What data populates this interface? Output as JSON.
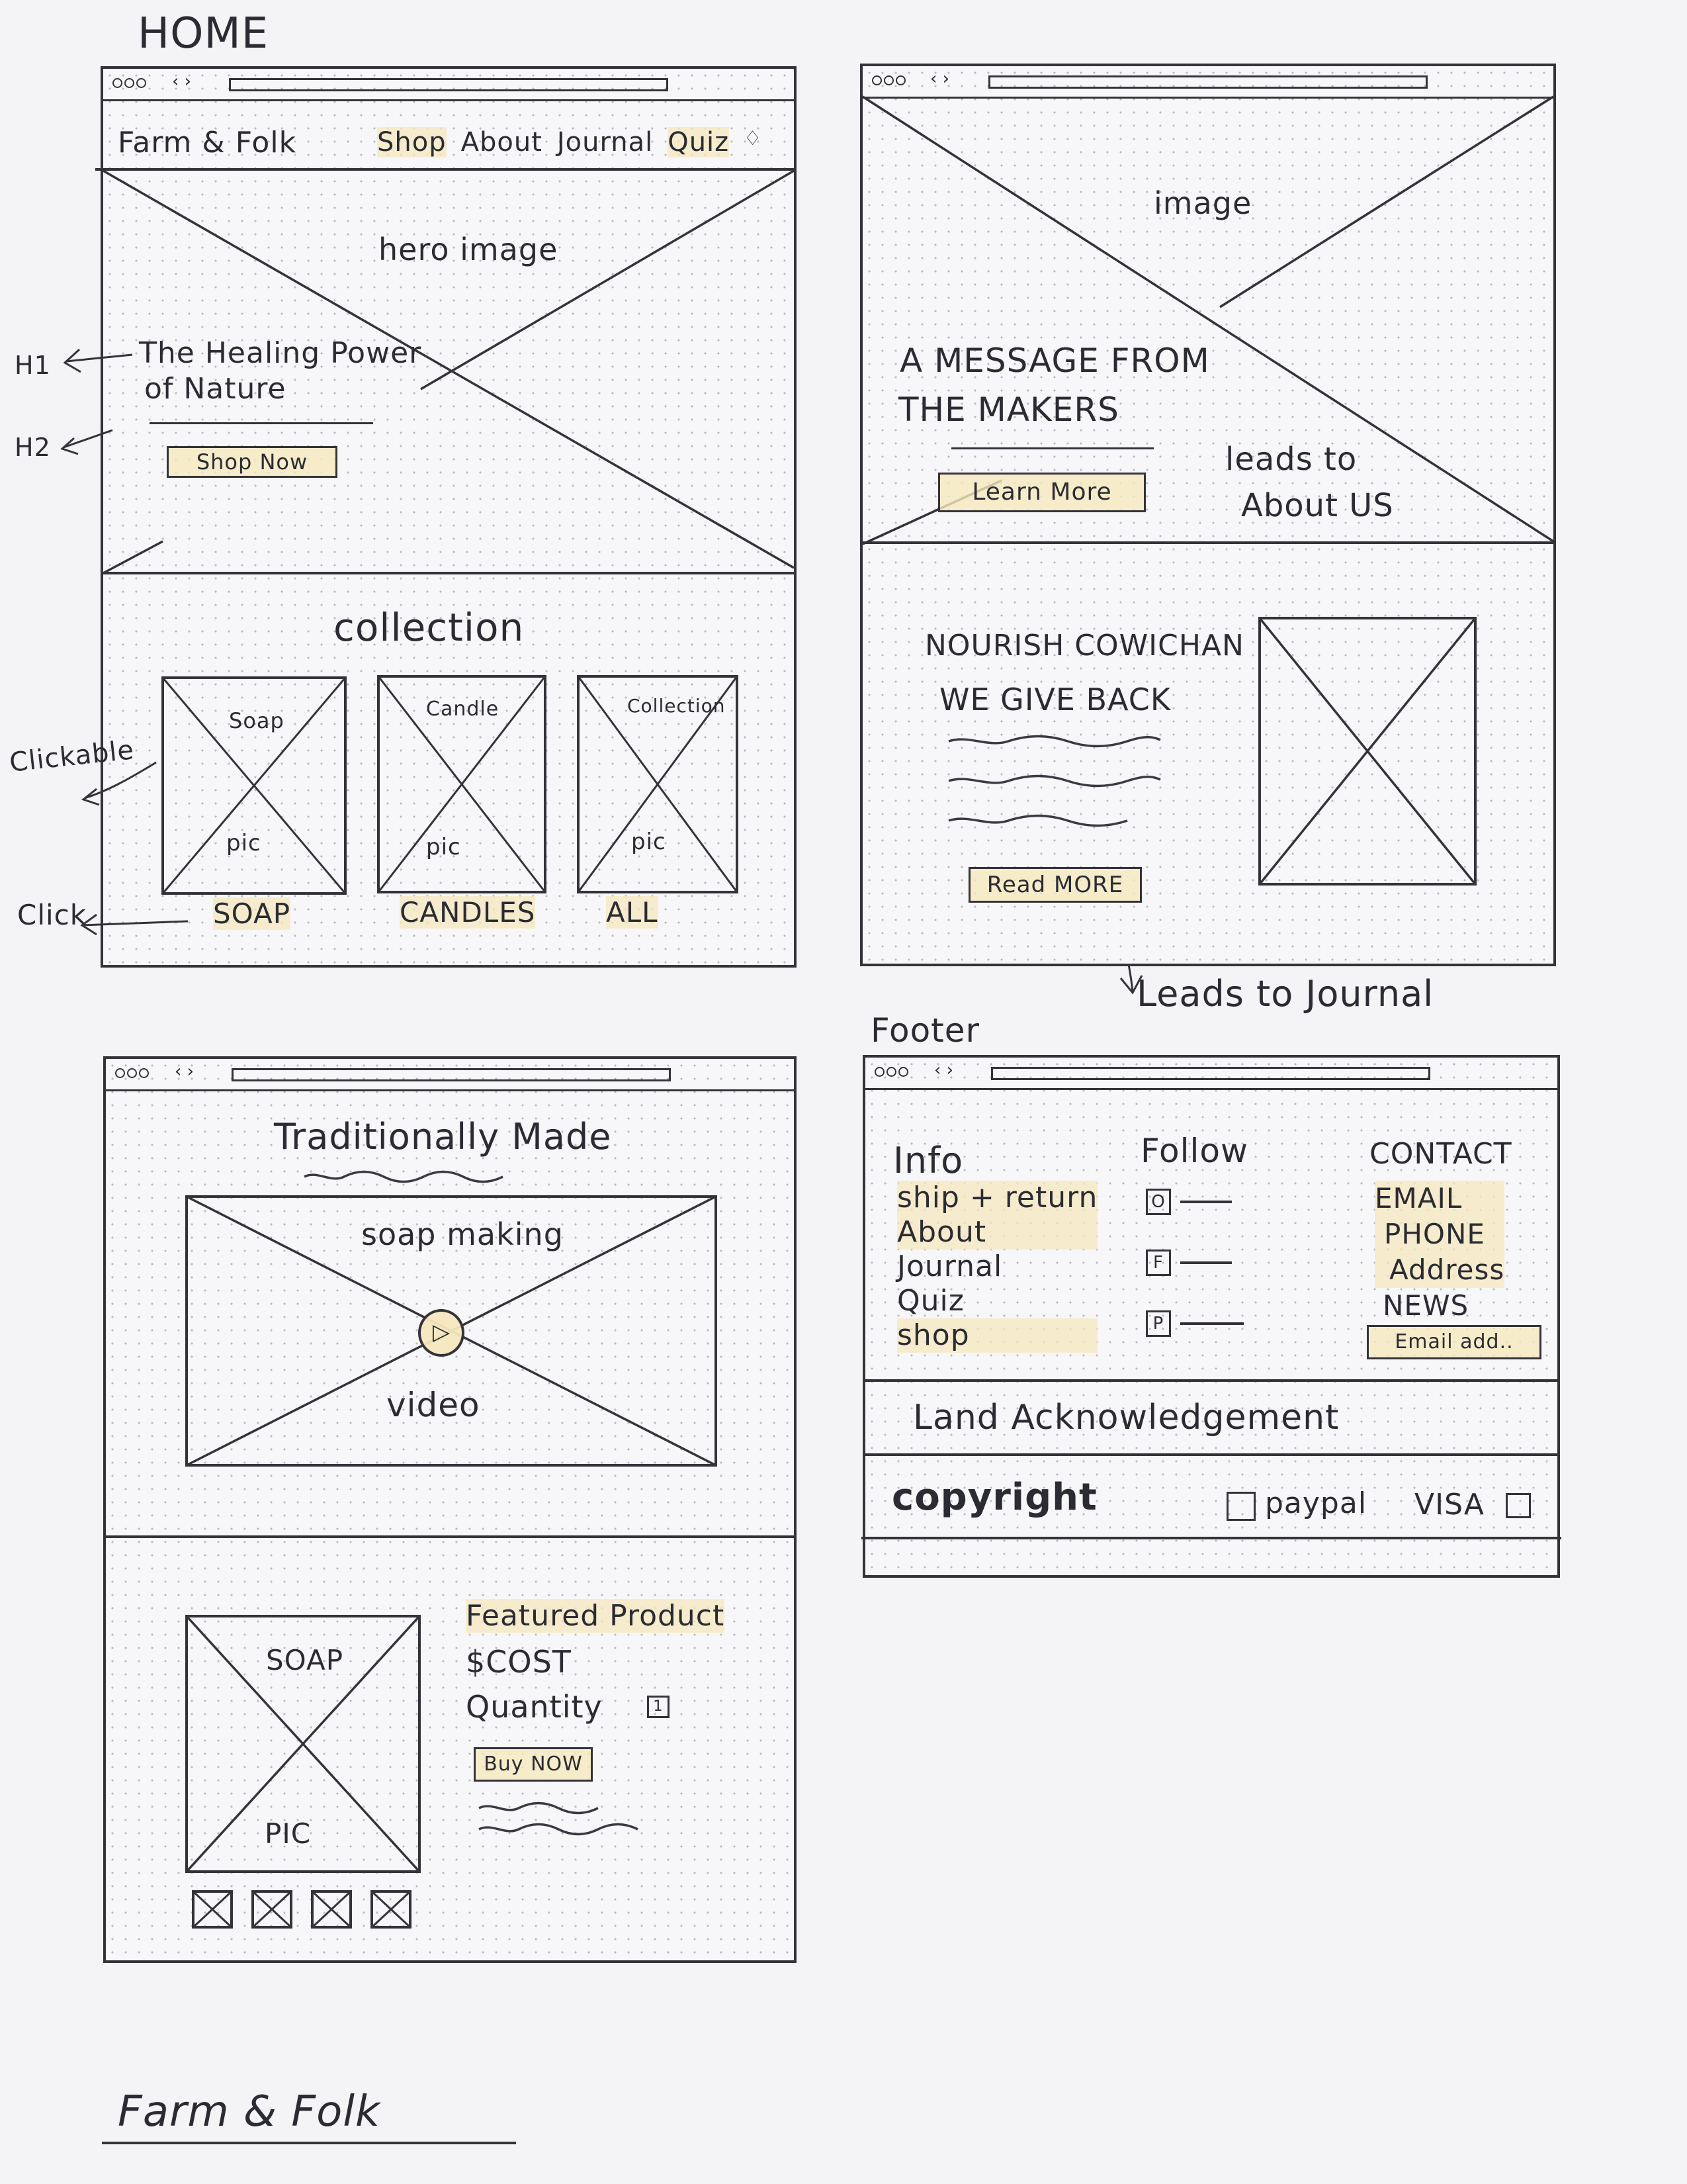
{
  "page_title": "HOME",
  "footer_heading": "Footer",
  "brand_signature": "Farm & Folk",
  "frame1": {
    "logo": "Farm & Folk",
    "nav": [
      "Shop",
      "About",
      "Journal",
      "Quiz"
    ],
    "hero_label": "hero image",
    "hero_h1_line1": "The Healing Power",
    "hero_h1_line2": "of Nature",
    "shop_now": "Shop Now",
    "collection_title": "collection",
    "cards": [
      {
        "top": "Soap",
        "bottom": "pic",
        "caption": "SOAP"
      },
      {
        "top": "Candle",
        "bottom": "pic",
        "caption": "CANDLES"
      },
      {
        "top": "Collection",
        "bottom": "pic",
        "caption": "ALL"
      }
    ]
  },
  "frame2": {
    "image_label": "image",
    "message_line1": "A MESSAGE FROM",
    "message_line2": "THE MAKERS",
    "learn_more": "Learn More",
    "nourish_line1": "NOURISH COWICHAN",
    "nourish_line2": "WE GIVE BACK",
    "read_more": "Read MORE"
  },
  "frame3": {
    "title": "Traditionally Made",
    "video_top": "soap making",
    "video_bottom": "video",
    "product_top": "SOAP",
    "product_bottom": "PIC",
    "featured_title": "Featured Product",
    "cost": "$COST",
    "quantity": "Quantity",
    "quantity_value": "1",
    "buy_now": "Buy NOW"
  },
  "frame4": {
    "info_title": "Info",
    "info_links": [
      "ship + return",
      "About",
      "Journal",
      "Quiz",
      "shop"
    ],
    "follow_title": "Follow",
    "social_icons": [
      "O",
      "F",
      "P"
    ],
    "contact_title": "CONTACT",
    "contact_items": [
      "EMAIL",
      "PHONE",
      "Address",
      "NEWS"
    ],
    "email_placeholder": "Email add..",
    "land_ack": "Land Acknowledgement",
    "copyright": "copyright",
    "paypal": "paypal",
    "visa": "VISA"
  },
  "annotations": {
    "h1": "H1",
    "h2": "H2",
    "clickable": "Clickable",
    "click": "Click",
    "leads_about_line1": "leads to",
    "leads_about_line2": "About US",
    "leads_journal": "Leads to Journal"
  }
}
